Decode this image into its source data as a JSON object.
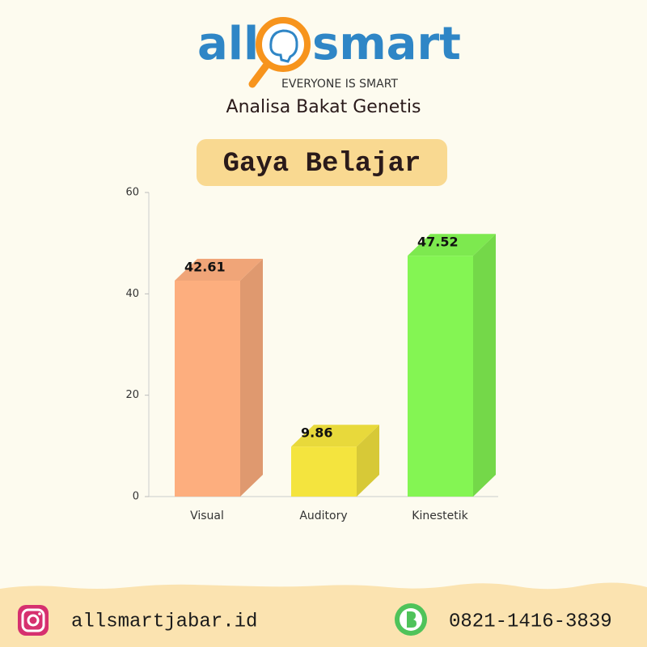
{
  "header": {
    "logo_left": "all",
    "logo_right": "smart",
    "tagline": "EVERYONE IS SMART",
    "subtitle": "Analisa Bakat Genetis"
  },
  "chart_data": {
    "type": "bar",
    "title": "Gaya Belajar",
    "categories": [
      "Visual",
      "Auditory",
      "Kinestetik"
    ],
    "values": [
      42.61,
      9.86,
      47.52
    ],
    "colors": [
      "#fdae7e",
      "#f4e43e",
      "#84f553"
    ],
    "ylim": [
      0,
      60
    ],
    "yticks": [
      0,
      20,
      40,
      60
    ],
    "grid": false
  },
  "footer": {
    "instagram": "allsmartjabar.id",
    "phone": "0821-1416-3839"
  }
}
